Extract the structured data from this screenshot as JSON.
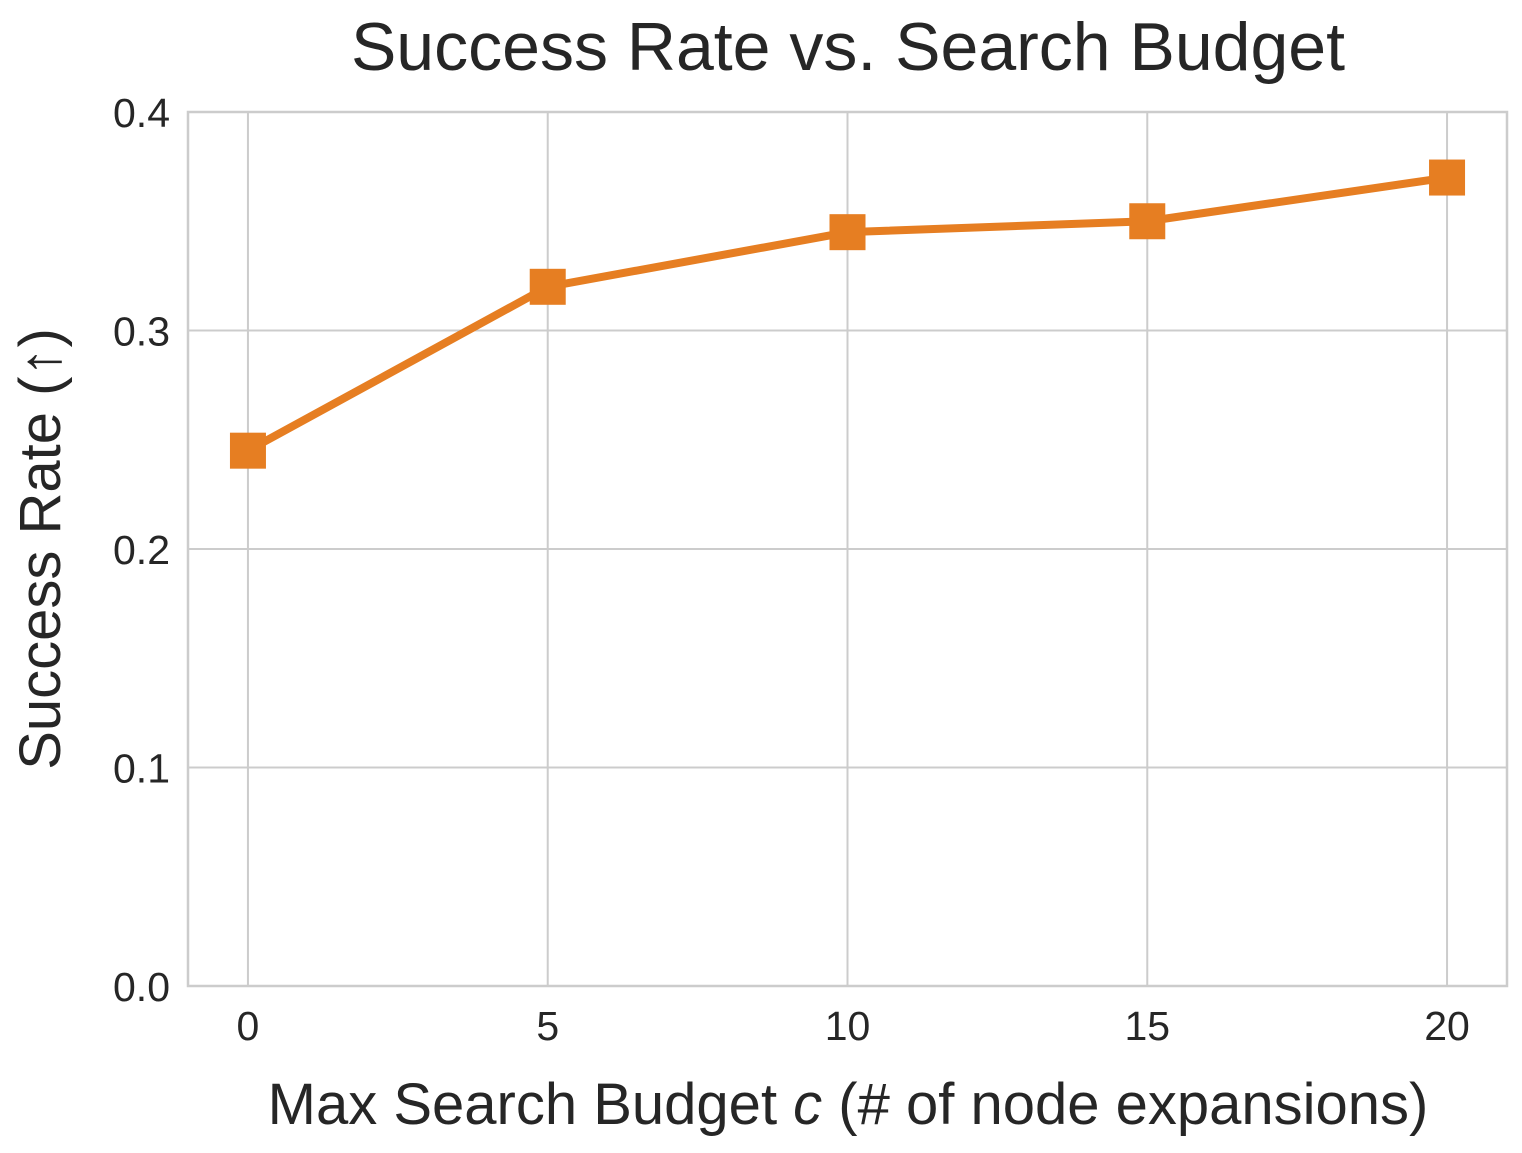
{
  "chart_data": {
    "type": "line",
    "title": "Success Rate vs. Search Budget",
    "xlabel_parts": [
      "Max Search Budget ",
      "c",
      " (# of node expansions)"
    ],
    "ylabel": "Success Rate (↑)",
    "x": [
      0,
      5,
      10,
      15,
      20
    ],
    "series": [
      {
        "values": [
          0.245,
          0.32,
          0.345,
          0.35,
          0.37
        ],
        "color": "#e67e22",
        "marker": "square"
      }
    ],
    "xlim": [
      -1,
      21
    ],
    "ylim": [
      0.0,
      0.4
    ],
    "xticks": [
      0,
      5,
      10,
      15,
      20
    ],
    "xtick_labels": [
      "0",
      "5",
      "10",
      "15",
      "20"
    ],
    "yticks": [
      0.0,
      0.1,
      0.2,
      0.3,
      0.4
    ],
    "ytick_labels": [
      "0.0",
      "0.1",
      "0.2",
      "0.3",
      "0.4"
    ],
    "grid": true,
    "grid_color": "#cccccc",
    "text_color": "#262626"
  }
}
